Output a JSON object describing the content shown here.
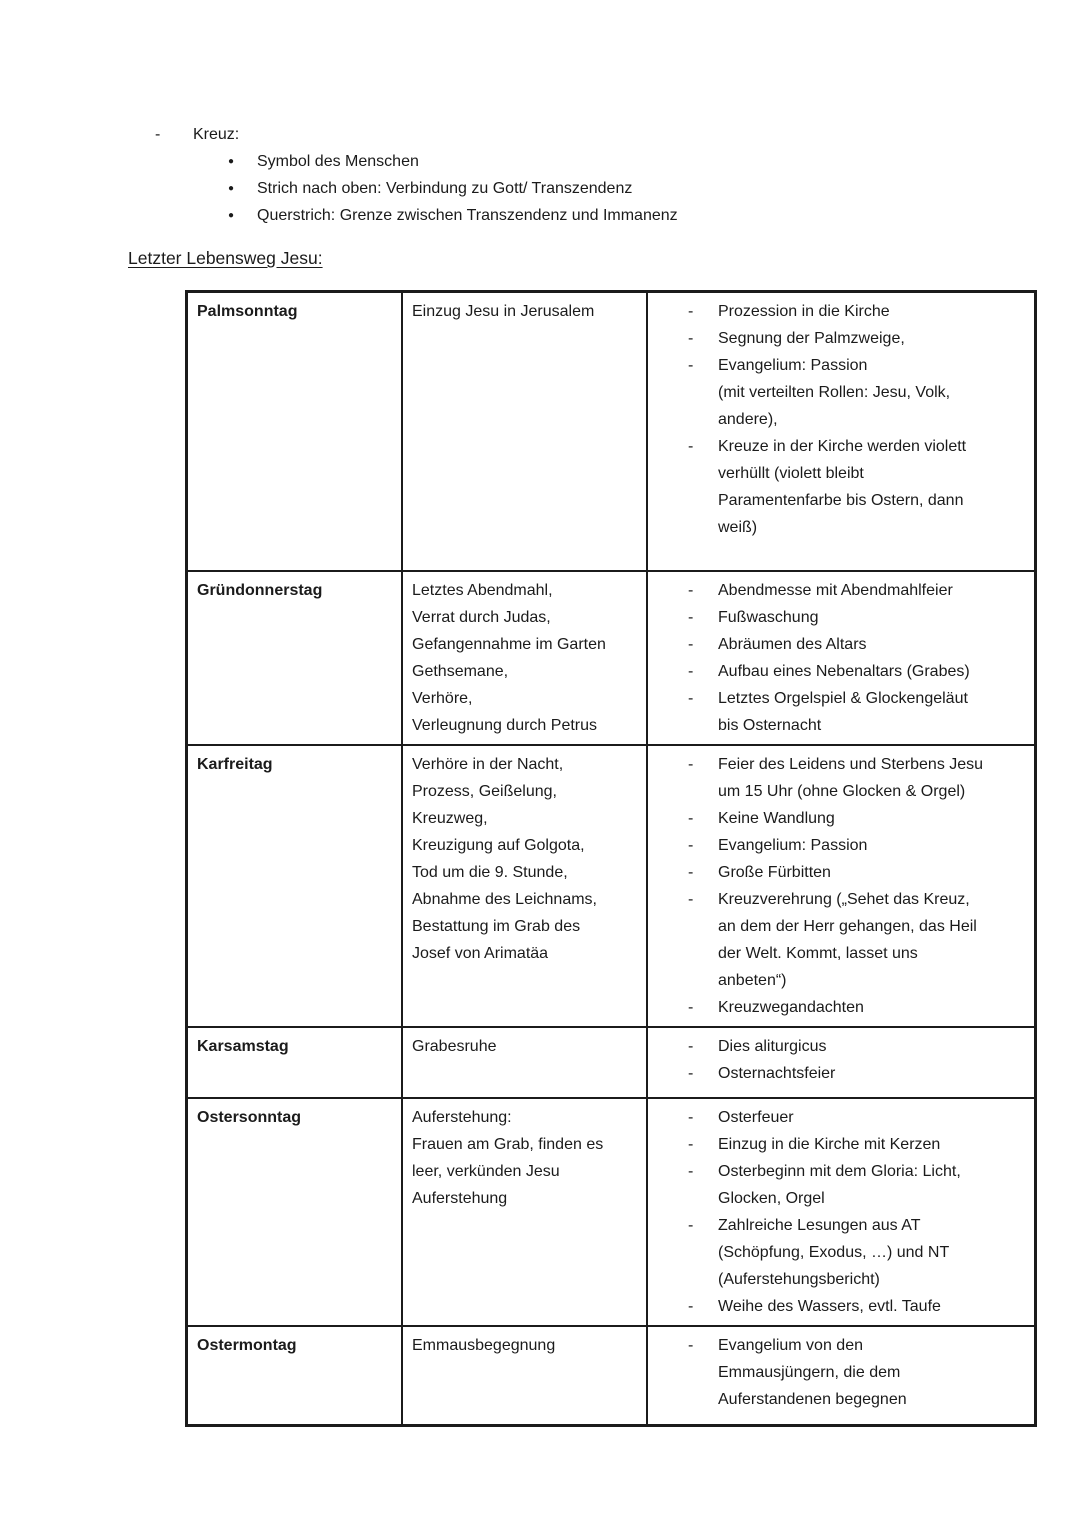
{
  "colors": {
    "background": "#ffffff",
    "text": "#1b1b1b",
    "border": "#1b1b1b"
  },
  "markers": {
    "dash": "-",
    "dot": "●"
  },
  "intro": {
    "heading": "Kreuz:",
    "bullets": [
      "Symbol des Menschen",
      "Strich nach oben: Verbindung zu Gott/ Transzendenz",
      "Querstrich: Grenze zwischen Transzendenz und Immanenz"
    ]
  },
  "section_heading": "Letzter Lebensweg Jesu:",
  "table": {
    "rows": [
      {
        "day": "Palmsonntag",
        "events": "Einzug Jesu in Jerusalem",
        "liturgy": [
          "Prozession in die Kirche",
          "Segnung der Palmzweige,",
          "Evangelium: Passion\n(mit verteilten Rollen: Jesu, Volk,\nandere),",
          "Kreuze in der Kirche werden violett\nverhüllt (violett bleibt\nParamentenfarbe bis Ostern, dann\nweiß)"
        ]
      },
      {
        "day": "Gründonnerstag",
        "events": "Letztes Abendmahl,\nVerrat durch Judas,\nGefangennahme im Garten\nGethsemane,\nVerhöre,\nVerleugnung durch Petrus",
        "liturgy": [
          "Abendmesse mit Abendmahlfeier",
          "Fußwaschung",
          "Abräumen des Altars",
          "Aufbau eines Nebenaltars (Grabes)",
          "Letztes Orgelspiel & Glockengeläut\nbis Osternacht"
        ]
      },
      {
        "day": "Karfreitag",
        "events": "Verhöre in der Nacht,\nProzess, Geißelung,\nKreuzweg,\nKreuzigung auf Golgota,\nTod um die 9. Stunde,\nAbnahme des Leichnams,\nBestattung im Grab des\nJosef von Arimatäa",
        "liturgy": [
          "Feier des Leidens und Sterbens Jesu\num 15 Uhr (ohne Glocken & Orgel)",
          "Keine Wandlung",
          "Evangelium: Passion",
          "Große Fürbitten",
          "Kreuzverehrung („Sehet das Kreuz,\nan dem der Herr gehangen, das Heil\nder Welt. Kommt, lasset uns\nanbeten“)",
          "Kreuzwegandachten"
        ]
      },
      {
        "day": "Karsamstag",
        "events": "Grabesruhe",
        "liturgy": [
          "Dies aliturgicus",
          "Osternachtsfeier"
        ]
      },
      {
        "day": "Ostersonntag",
        "events": "Auferstehung:\nFrauen am Grab, finden es\nleer, verkünden Jesu\nAuferstehung",
        "liturgy": [
          "Osterfeuer",
          "Einzug in die Kirche mit Kerzen",
          "Osterbeginn mit dem Gloria: Licht,\nGlocken, Orgel",
          "Zahlreiche Lesungen aus AT\n(Schöpfung, Exodus, …) und NT\n(Auferstehungsbericht)",
          "Weihe des Wassers, evtl. Taufe"
        ]
      },
      {
        "day": "Ostermontag",
        "events": "Emmausbegegnung",
        "liturgy": [
          "Evangelium von den\nEmmausjüngern, die dem\nAuferstandenen begegnen"
        ]
      }
    ]
  }
}
